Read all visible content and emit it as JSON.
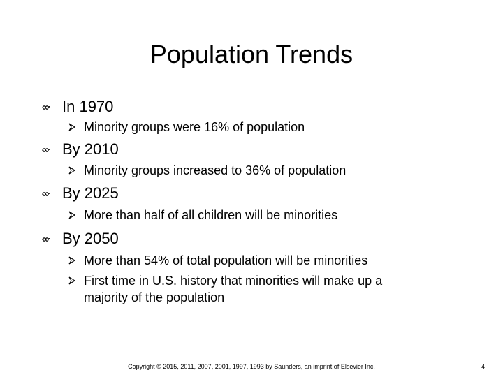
{
  "slide": {
    "title": "Population Trends",
    "items": [
      {
        "label": "In 1970",
        "subitems": [
          "Minority groups were 16% of population"
        ]
      },
      {
        "label": "By 2010",
        "subitems": [
          "Minority groups increased to 36% of population"
        ]
      },
      {
        "label": "By 2025",
        "subitems": [
          "More than half of all children will be minorities"
        ]
      },
      {
        "label": "By 2050",
        "subitems": [
          "More than 54% of total population will be minorities",
          "First time in U.S. history that minorities will make up a majority of the population"
        ]
      }
    ],
    "footer": "Copyright © 2015, 2011, 2007, 2001, 1997, 1993 by Saunders, an imprint of Elsevier Inc.",
    "page_number": "4"
  },
  "icons": {
    "level1_bullet": "curl-bullet-icon",
    "level2_bullet": "arrowhead-bullet-icon"
  }
}
